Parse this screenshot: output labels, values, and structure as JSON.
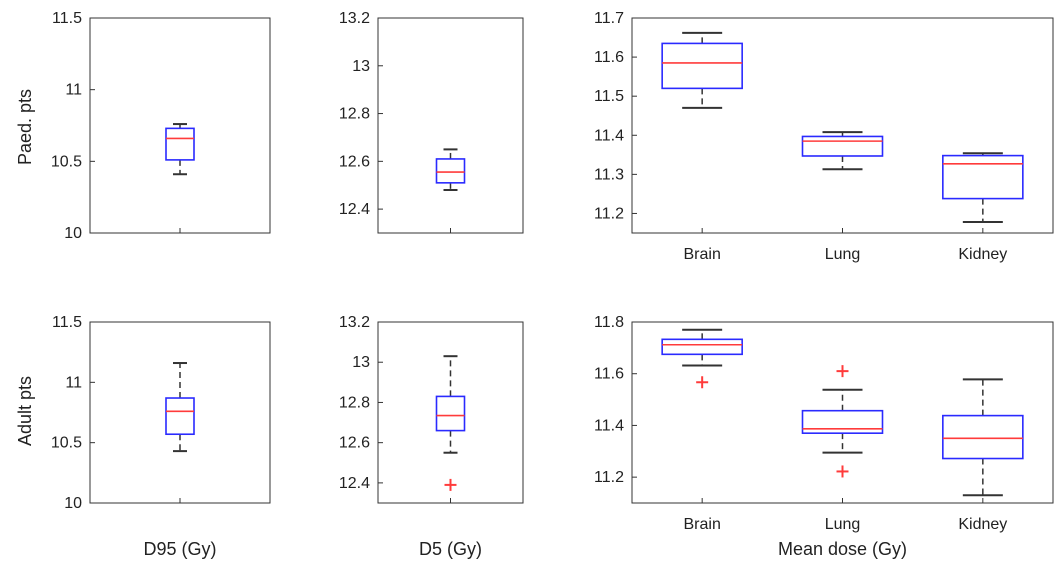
{
  "row_labels": [
    "Paed. pts",
    "Adult pts"
  ],
  "column_labels": [
    "D95 (Gy)",
    "D5 (Gy)",
    "Mean dose (Gy)"
  ],
  "colors": {
    "box": "#2a2aff",
    "median": "#ff3b3b",
    "whisker": "#333333",
    "outlier": "#ff3b3b",
    "axes": "#333333"
  },
  "chart_data": [
    {
      "type": "box",
      "row": "Paed. pts",
      "xlabel": "",
      "ylim": [
        10,
        11.5
      ],
      "yticks": [
        "10",
        "10.5",
        "11",
        "11.5"
      ],
      "categories": [
        ""
      ],
      "boxes": [
        {
          "q1": 10.51,
          "median": 10.66,
          "q3": 10.73,
          "whisker_low": 10.41,
          "whisker_high": 10.76,
          "outliers": []
        }
      ]
    },
    {
      "type": "box",
      "row": "Paed. pts",
      "xlabel": "",
      "ylim": [
        12.3,
        13.2
      ],
      "yticks": [
        "12.4",
        "12.6",
        "12.8",
        "13",
        "13.2"
      ],
      "categories": [
        ""
      ],
      "boxes": [
        {
          "q1": 12.51,
          "median": 12.555,
          "q3": 12.61,
          "whisker_low": 12.48,
          "whisker_high": 12.65,
          "outliers": []
        }
      ]
    },
    {
      "type": "box",
      "row": "Paed. pts",
      "xlabel": "",
      "ylim": [
        11.15,
        11.7
      ],
      "yticks": [
        "11.2",
        "11.3",
        "11.4",
        "11.5",
        "11.6",
        "11.7"
      ],
      "categories": [
        "Brain",
        "Lung",
        "Kidney"
      ],
      "boxes": [
        {
          "q1": 11.52,
          "median": 11.585,
          "q3": 11.635,
          "whisker_low": 11.47,
          "whisker_high": 11.662,
          "outliers": []
        },
        {
          "q1": 11.347,
          "median": 11.385,
          "q3": 11.397,
          "whisker_low": 11.313,
          "whisker_high": 11.408,
          "outliers": []
        },
        {
          "q1": 11.238,
          "median": 11.327,
          "q3": 11.348,
          "whisker_low": 11.178,
          "whisker_high": 11.354,
          "outliers": []
        }
      ]
    },
    {
      "type": "box",
      "row": "Adult pts",
      "xlabel": "D95 (Gy)",
      "ylim": [
        10,
        11.5
      ],
      "yticks": [
        "10",
        "10.5",
        "11",
        "11.5"
      ],
      "categories": [
        ""
      ],
      "boxes": [
        {
          "q1": 10.57,
          "median": 10.76,
          "q3": 10.87,
          "whisker_low": 10.43,
          "whisker_high": 11.16,
          "outliers": []
        }
      ]
    },
    {
      "type": "box",
      "row": "Adult pts",
      "xlabel": "D5 (Gy)",
      "ylim": [
        12.3,
        13.2
      ],
      "yticks": [
        "12.4",
        "12.6",
        "12.8",
        "13",
        "13.2"
      ],
      "categories": [
        ""
      ],
      "boxes": [
        {
          "q1": 12.66,
          "median": 12.735,
          "q3": 12.83,
          "whisker_low": 12.55,
          "whisker_high": 13.03,
          "outliers": [
            12.39
          ]
        }
      ]
    },
    {
      "type": "box",
      "row": "Adult pts",
      "xlabel": "Mean dose (Gy)",
      "ylim": [
        11.1,
        11.8
      ],
      "yticks": [
        "11.2",
        "11.4",
        "11.6",
        "11.8"
      ],
      "categories": [
        "Brain",
        "Lung",
        "Kidney"
      ],
      "boxes": [
        {
          "q1": 11.675,
          "median": 11.712,
          "q3": 11.733,
          "whisker_low": 11.632,
          "whisker_high": 11.77,
          "outliers": [
            11.567
          ]
        },
        {
          "q1": 11.37,
          "median": 11.387,
          "q3": 11.457,
          "whisker_low": 11.295,
          "whisker_high": 11.538,
          "outliers": [
            11.61,
            11.222
          ]
        },
        {
          "q1": 11.272,
          "median": 11.35,
          "q3": 11.438,
          "whisker_low": 11.13,
          "whisker_high": 11.578,
          "outliers": []
        }
      ]
    }
  ]
}
